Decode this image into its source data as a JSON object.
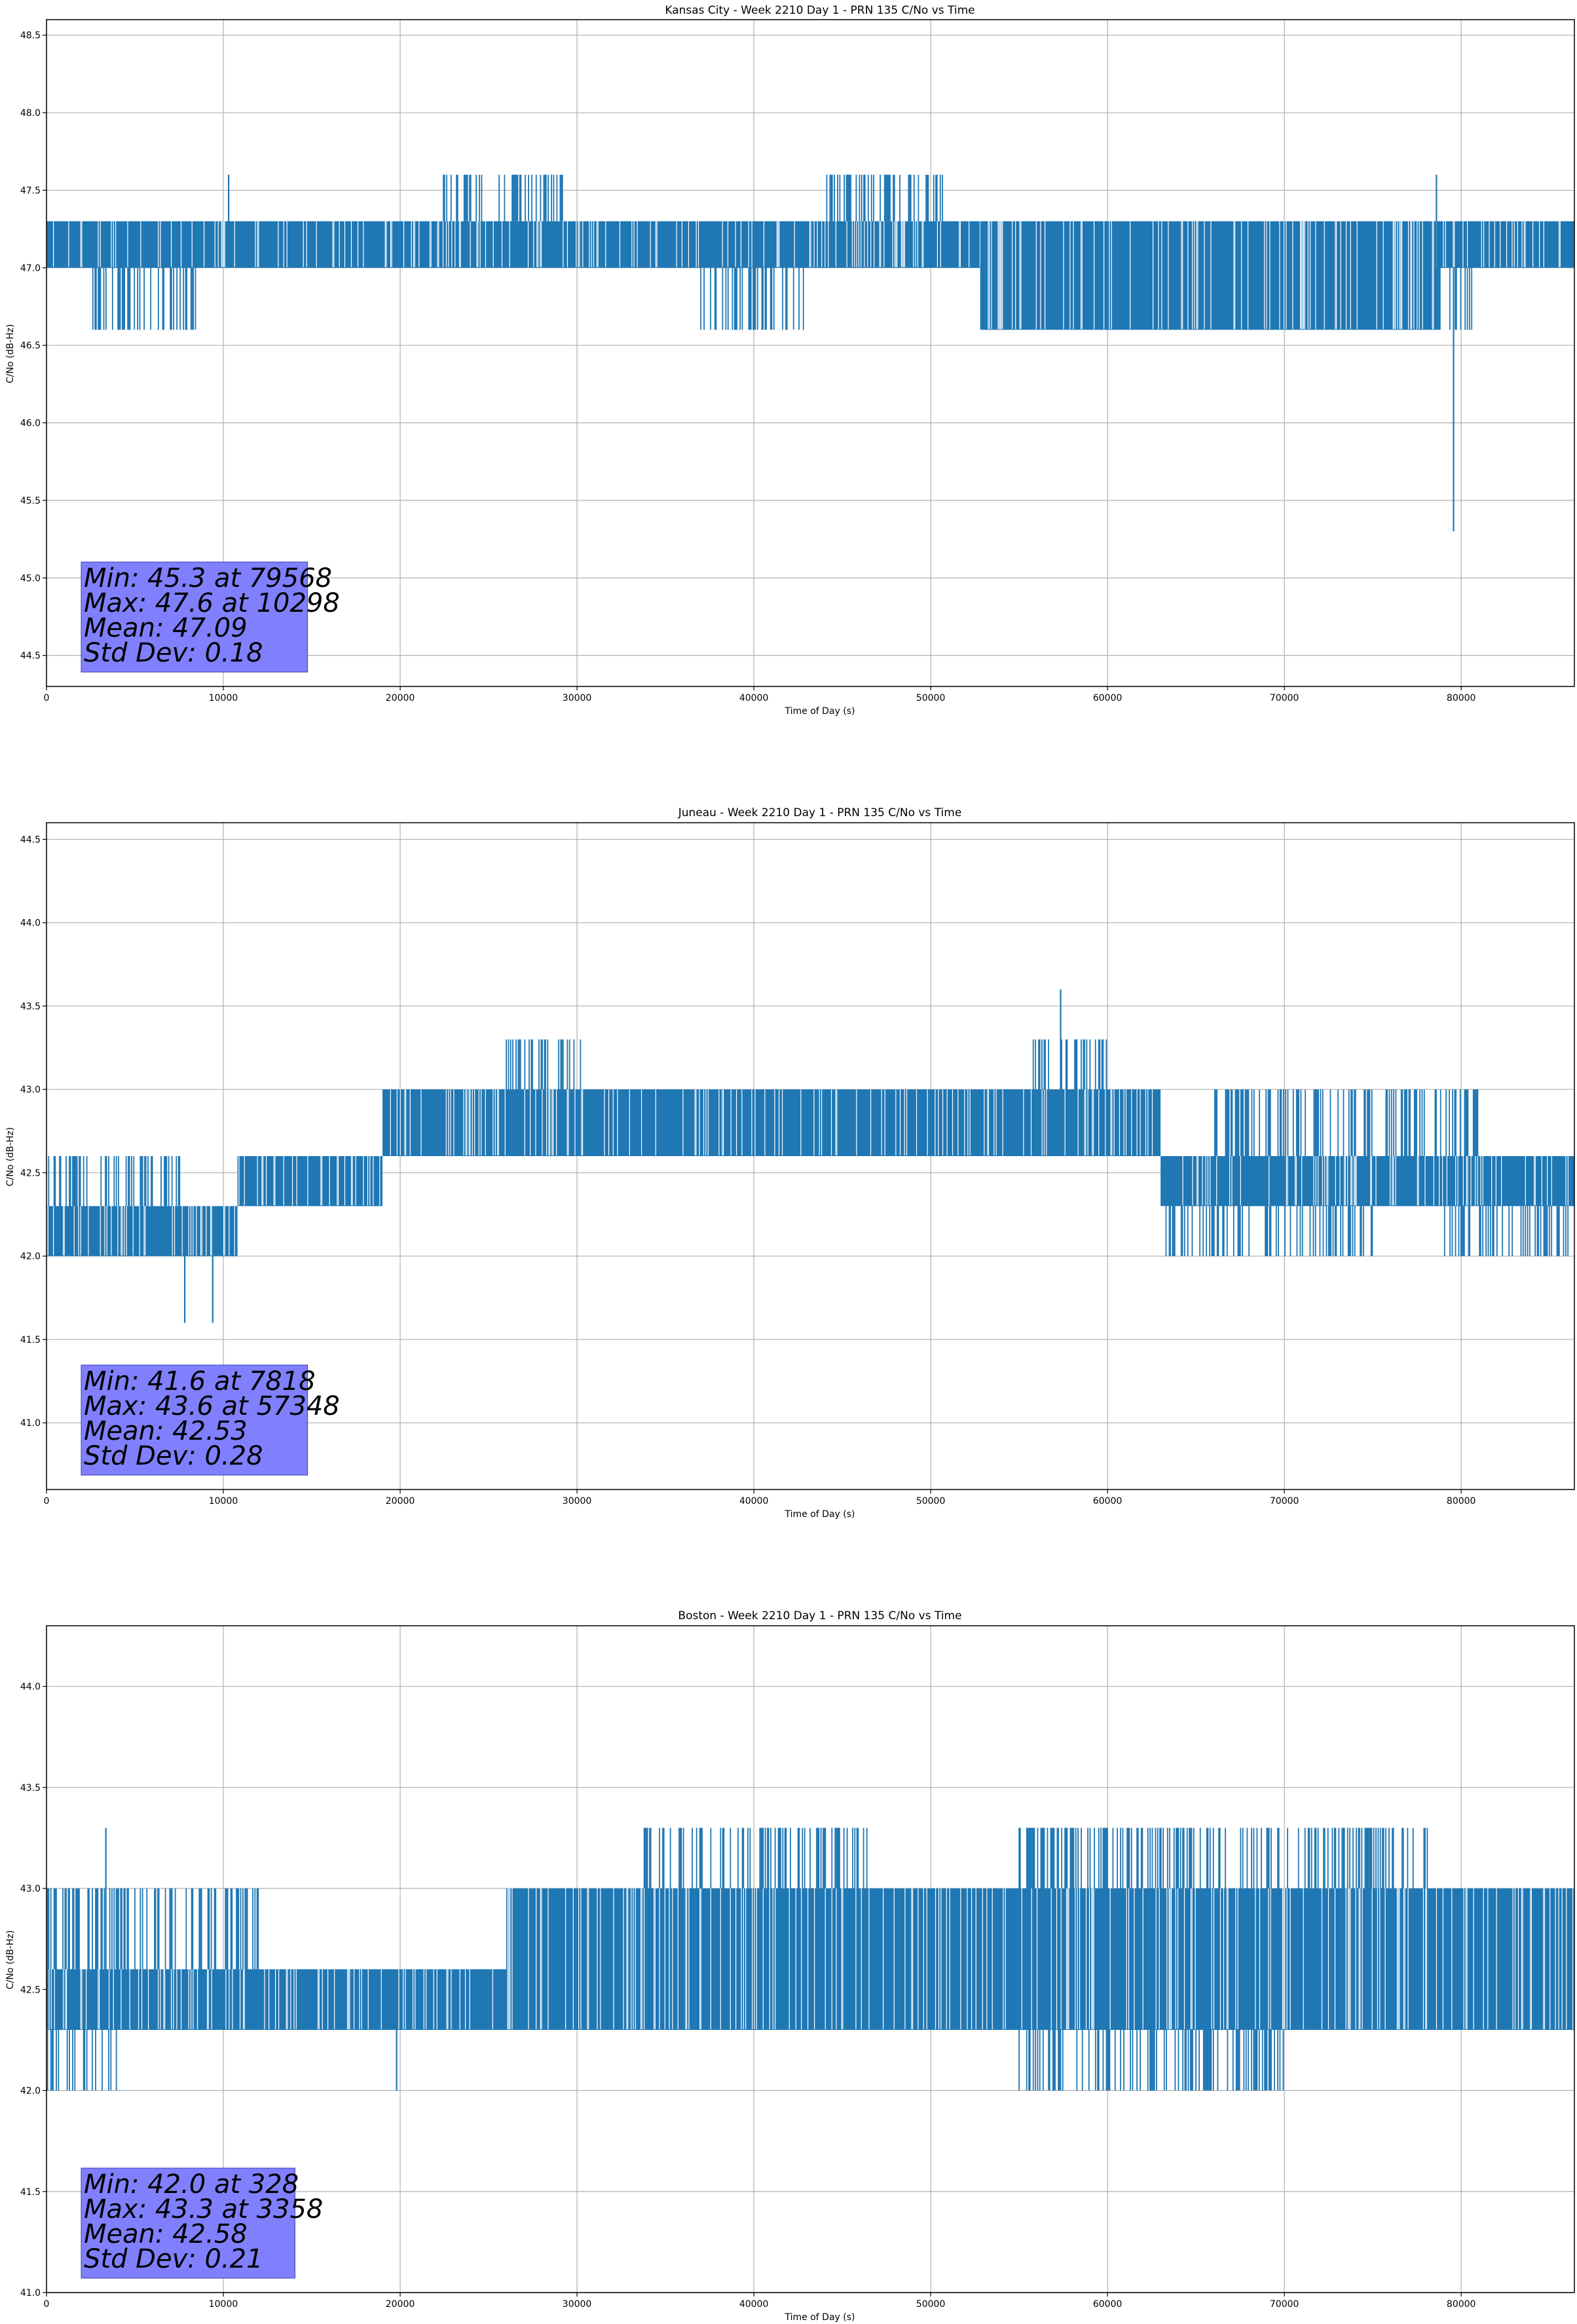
{
  "chart_data": [
    {
      "type": "line",
      "title": "Kansas City - Week 2210 Day 1 - PRN 135 C/No vs Time",
      "xlabel": "Time of Day (s)",
      "ylabel": "C/No (dB-Hz)",
      "xlim": [
        0,
        86400
      ],
      "ylim": [
        44.3,
        48.6
      ],
      "x_ticks": [
        0,
        10000,
        20000,
        30000,
        40000,
        50000,
        60000,
        70000,
        80000
      ],
      "y_ticks": [
        "44.5",
        "45.0",
        "45.5",
        "46.0",
        "46.5",
        "47.0",
        "47.5",
        "48.0",
        "48.5"
      ],
      "grid": true,
      "color": "#1f77b4",
      "series": [
        {
          "levels": [
            47.0,
            47.3
          ],
          "segments": [
            {
              "x": [
                0,
                52800
              ],
              "values": [
                47.0,
                47.3
              ]
            },
            {
              "x": [
                52800,
                78600
              ],
              "values": [
                46.6,
                47.3
              ]
            },
            {
              "x": [
                78600,
                86400
              ],
              "values": [
                47.0,
                47.3
              ]
            }
          ],
          "excursions": [
            {
              "x": [
                22200,
                29200
              ],
              "values": [
                47.6
              ]
            },
            {
              "x": [
                44000,
                50800
              ],
              "values": [
                47.6
              ]
            },
            {
              "x": [
                2500,
                8600
              ],
              "values": [
                46.6
              ]
            },
            {
              "x": [
                37000,
                43000
              ],
              "values": [
                46.6
              ]
            },
            {
              "x": [
                78000,
                81000
              ],
              "values": [
                46.6
              ]
            }
          ],
          "extremes": [
            {
              "x": 79568,
              "value": 45.3
            },
            {
              "x": 10298,
              "value": 47.6
            },
            {
              "x": 78600,
              "value": 47.6
            }
          ]
        }
      ],
      "annotation": {
        "lines": [
          "Min: 45.3 at 79568",
          "Max: 47.6 at 10298",
          "Mean: 47.09",
          "Std Dev: 0.18"
        ],
        "background": "#8080ff"
      }
    },
    {
      "type": "line",
      "title": "Juneau - Week 2210 Day 1 - PRN 135 C/No vs Time",
      "xlabel": "Time of Day (s)",
      "ylabel": "C/No (dB-Hz)",
      "xlim": [
        0,
        86400
      ],
      "ylim": [
        40.6,
        44.6
      ],
      "x_ticks": [
        0,
        10000,
        20000,
        30000,
        40000,
        50000,
        60000,
        70000,
        80000
      ],
      "y_ticks": [
        "41.0",
        "41.5",
        "42.0",
        "42.5",
        "43.0",
        "43.5",
        "44.0",
        "44.5"
      ],
      "grid": true,
      "color": "#1f77b4",
      "series": [
        {
          "segments": [
            {
              "x": [
                0,
                10800
              ],
              "values": [
                42.0,
                42.3
              ]
            },
            {
              "x": [
                10800,
                19000
              ],
              "values": [
                42.3,
                42.6
              ]
            },
            {
              "x": [
                19000,
                63000
              ],
              "values": [
                42.6,
                43.0
              ]
            },
            {
              "x": [
                63000,
                86400
              ],
              "values": [
                42.3,
                42.6
              ]
            }
          ],
          "excursions": [
            {
              "x": [
                55800,
                60000
              ],
              "values": [
                43.3
              ]
            },
            {
              "x": [
                26000,
                30200
              ],
              "values": [
                43.3
              ]
            },
            {
              "x": [
                0,
                7600
              ],
              "values": [
                42.6
              ]
            },
            {
              "x": [
                63000,
                75000
              ],
              "values": [
                42.0
              ]
            },
            {
              "x": [
                79000,
                86400
              ],
              "values": [
                42.0
              ]
            },
            {
              "x": [
                66000,
                81000
              ],
              "values": [
                43.0
              ]
            }
          ],
          "extremes": [
            {
              "x": 7818,
              "value": 41.6
            },
            {
              "x": 9400,
              "value": 41.6
            },
            {
              "x": 57348,
              "value": 43.6
            }
          ]
        }
      ],
      "annotation": {
        "lines": [
          "Min: 41.6 at 7818",
          "Max: 43.6 at 57348",
          "Mean: 42.53",
          "Std Dev: 0.28"
        ],
        "background": "#8080ff"
      }
    },
    {
      "type": "line",
      "title": "Boston - Week 2210 Day 1 - PRN 135 C/No vs Time",
      "xlabel": "Time of Day (s)",
      "ylabel": "C/No (dB-Hz)",
      "xlim": [
        0,
        86400
      ],
      "ylim": [
        41.0,
        44.3
      ],
      "x_ticks": [
        0,
        10000,
        20000,
        30000,
        40000,
        50000,
        60000,
        70000,
        80000
      ],
      "y_ticks": [
        "41.0",
        "41.5",
        "42.0",
        "42.5",
        "43.0",
        "43.5",
        "44.0"
      ],
      "grid": true,
      "color": "#1f77b4",
      "series": [
        {
          "segments": [
            {
              "x": [
                0,
                12000
              ],
              "values": [
                42.3,
                42.6
              ]
            },
            {
              "x": [
                12000,
                26000
              ],
              "values": [
                42.3,
                42.6
              ]
            },
            {
              "x": [
                26000,
                86400
              ],
              "values": [
                42.3,
                43.0
              ]
            }
          ],
          "excursions": [
            {
              "x": [
                0,
                12000
              ],
              "values": [
                43.0
              ]
            },
            {
              "x": [
                0,
                4000
              ],
              "values": [
                42.0
              ]
            },
            {
              "x": [
                33800,
                46500
              ],
              "values": [
                43.3
              ]
            },
            {
              "x": [
                55000,
                78200
              ],
              "values": [
                43.3
              ]
            },
            {
              "x": [
                55000,
                70000
              ],
              "values": [
                42.0
              ]
            }
          ],
          "extremes": [
            {
              "x": 328,
              "value": 42.0
            },
            {
              "x": 3358,
              "value": 43.3
            },
            {
              "x": 19800,
              "value": 42.0
            }
          ]
        }
      ],
      "annotation": {
        "lines": [
          "Min: 42.0 at 328",
          "Max: 43.3 at 3358",
          "Mean: 42.58",
          "Std Dev: 0.21"
        ],
        "background": "#8080ff"
      }
    }
  ]
}
